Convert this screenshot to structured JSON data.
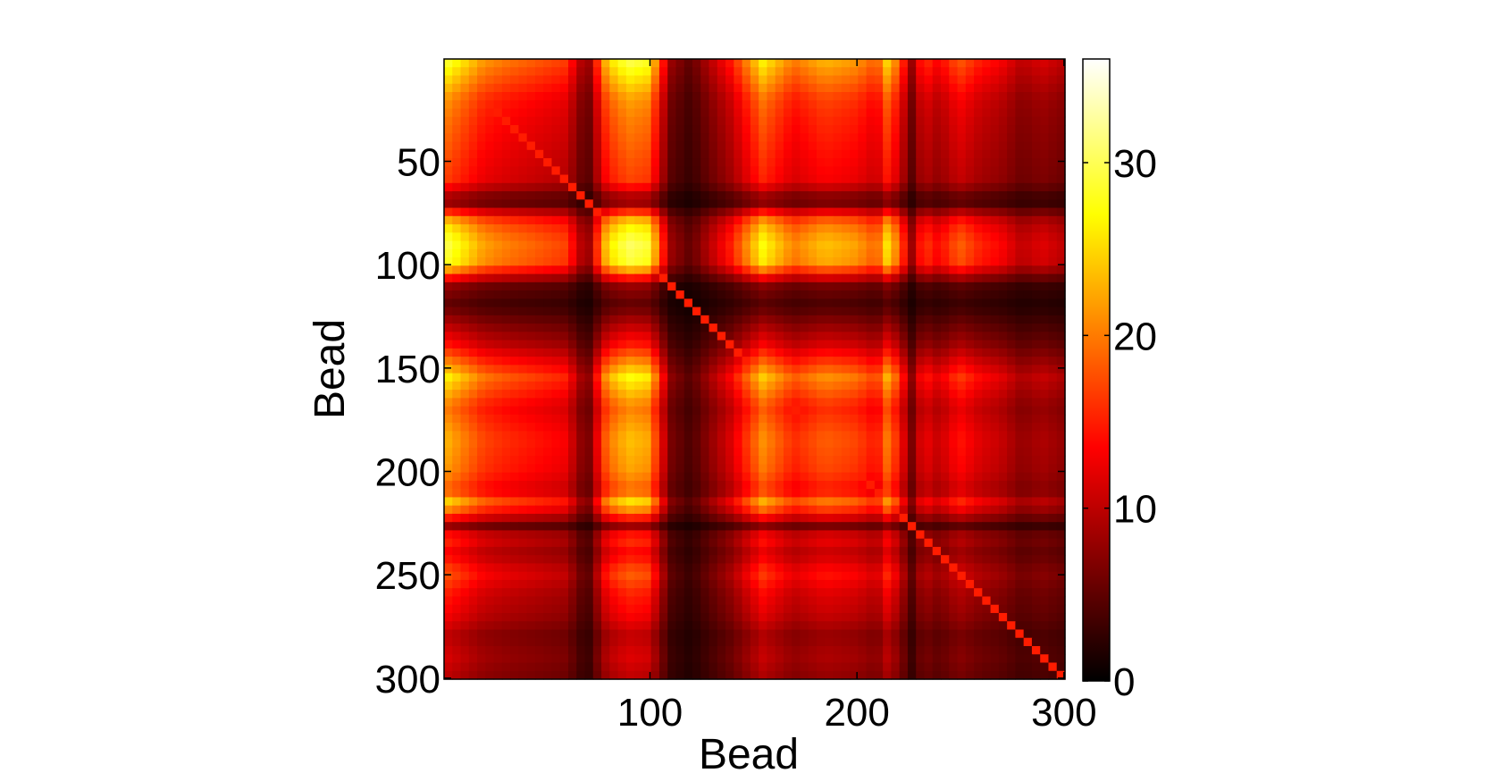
{
  "chart_data": {
    "type": "heatmap",
    "title": "",
    "xlabel": "Bead",
    "ylabel": "Bead",
    "x_range": [
      1,
      300
    ],
    "y_range": [
      1,
      300
    ],
    "y_axis_reversed": true,
    "xticks": [
      100,
      200,
      300
    ],
    "yticks": [
      50,
      100,
      150,
      200,
      250,
      300
    ],
    "colormap": "hot",
    "colorbar": {
      "range": [
        0,
        36
      ],
      "ticks": [
        0,
        10,
        20,
        30
      ]
    },
    "grid": false,
    "legend": "none",
    "profile_axis": [
      0,
      20,
      30,
      60,
      70,
      80,
      90,
      100,
      110,
      120,
      140,
      155,
      170,
      185,
      200,
      210,
      215,
      220,
      228,
      232,
      240,
      250,
      260,
      270,
      280,
      290,
      300
    ],
    "profile_level": [
      0.9,
      0.65,
      0.6,
      0.5,
      0.2,
      0.75,
      0.9,
      0.85,
      0.25,
      0.15,
      0.45,
      0.8,
      0.6,
      0.7,
      0.65,
      0.55,
      0.75,
      0.6,
      0.2,
      0.5,
      0.4,
      0.55,
      0.45,
      0.4,
      0.3,
      0.35,
      0.3
    ],
    "diagonal_value": 15,
    "value_scale": 38
  }
}
